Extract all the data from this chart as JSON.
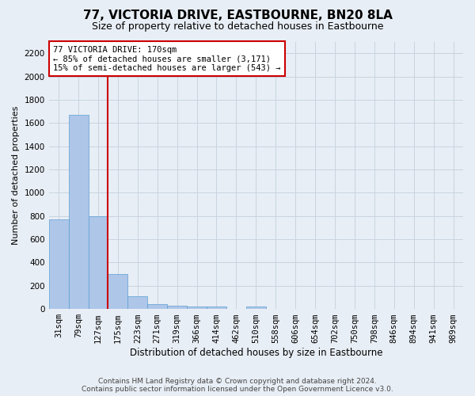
{
  "title": "77, VICTORIA DRIVE, EASTBOURNE, BN20 8LA",
  "subtitle": "Size of property relative to detached houses in Eastbourne",
  "xlabel": "Distribution of detached houses by size in Eastbourne",
  "ylabel": "Number of detached properties",
  "footer_line1": "Contains HM Land Registry data © Crown copyright and database right 2024.",
  "footer_line2": "Contains public sector information licensed under the Open Government Licence v3.0.",
  "bar_labels": [
    "31sqm",
    "79sqm",
    "127sqm",
    "175sqm",
    "223sqm",
    "271sqm",
    "319sqm",
    "366sqm",
    "414sqm",
    "462sqm",
    "510sqm",
    "558sqm",
    "606sqm",
    "654sqm",
    "702sqm",
    "750sqm",
    "798sqm",
    "846sqm",
    "894sqm",
    "941sqm",
    "989sqm"
  ],
  "bar_values": [
    770,
    1670,
    800,
    300,
    110,
    45,
    30,
    25,
    22,
    0,
    20,
    0,
    0,
    0,
    0,
    0,
    0,
    0,
    0,
    0,
    0
  ],
  "bar_color": "#aec6e8",
  "bar_edgecolor": "#5a9fd4",
  "background_color": "#e8eef5",
  "ylim": [
    0,
    2300
  ],
  "yticks": [
    0,
    200,
    400,
    600,
    800,
    1000,
    1200,
    1400,
    1600,
    1800,
    2000,
    2200
  ],
  "vline_x": 2.5,
  "annotation_text_line1": "77 VICTORIA DRIVE: 170sqm",
  "annotation_text_line2": "← 85% of detached houses are smaller (3,171)",
  "annotation_text_line3": "15% of semi-detached houses are larger (543) →",
  "annotation_box_color": "#ffffff",
  "annotation_box_edgecolor": "#cc0000",
  "vline_color": "#cc0000",
  "grid_color": "#c8d4e0",
  "title_fontsize": 11,
  "subtitle_fontsize": 9,
  "ylabel_fontsize": 8,
  "xlabel_fontsize": 8.5,
  "tick_fontsize": 7.5,
  "annotation_fontsize": 7.5,
  "footer_fontsize": 6.5
}
